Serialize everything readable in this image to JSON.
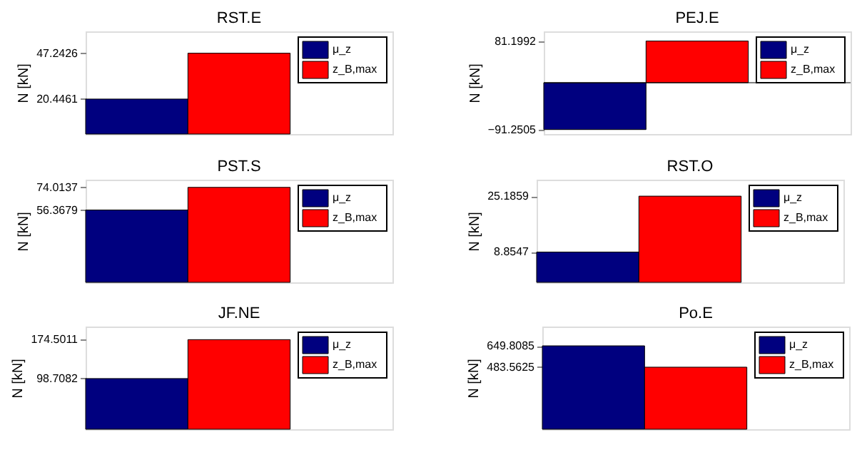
{
  "chart_data": [
    {
      "type": "bar",
      "title": "RST.E",
      "ylabel": "N [kN]",
      "categories": [
        null
      ],
      "ylim": [
        0,
        60
      ],
      "yticks": [
        20.4461,
        47.2426
      ],
      "tick_labels": "y",
      "grid": false,
      "legend": "top right",
      "series": [
        {
          "name": "μ_z",
          "color": "#00007f",
          "values": [
            20.4461
          ]
        },
        {
          "name": "z_B,max",
          "color": "#ff0000",
          "values": [
            47.2426
          ]
        }
      ]
    },
    {
      "type": "bar",
      "title": "PEJ.E",
      "ylabel": "N [kN]",
      "categories": [
        null
      ],
      "ylim": [
        -100,
        100
      ],
      "yticks": [
        -91.2505,
        81.1992
      ],
      "tick_labels": "y",
      "grid": false,
      "legend": "top right",
      "series": [
        {
          "name": "μ_z",
          "color": "#00007f",
          "values": [
            -91.2505
          ]
        },
        {
          "name": "z_B,max",
          "color": "#ff0000",
          "values": [
            81.1992
          ]
        }
      ]
    },
    {
      "type": "bar",
      "title": "PST.S",
      "ylabel": "N [kN]",
      "categories": [
        null
      ],
      "ylim": [
        0,
        80
      ],
      "yticks": [
        56.3679,
        74.0137
      ],
      "tick_labels": "y",
      "grid": false,
      "legend": "top right",
      "series": [
        {
          "name": "μ_z",
          "color": "#00007f",
          "values": [
            56.3679
          ]
        },
        {
          "name": "z_B,max",
          "color": "#ff0000",
          "values": [
            74.0137
          ]
        }
      ]
    },
    {
      "type": "bar",
      "title": "RST.O",
      "ylabel": "N [kN]",
      "categories": [
        null
      ],
      "ylim": [
        0,
        30
      ],
      "yticks": [
        8.8547,
        25.1859
      ],
      "tick_labels": "y",
      "grid": false,
      "legend": "top right",
      "series": [
        {
          "name": "μ_z",
          "color": "#00007f",
          "values": [
            8.8547
          ]
        },
        {
          "name": "z_B,max",
          "color": "#ff0000",
          "values": [
            25.1859
          ]
        }
      ]
    },
    {
      "type": "bar",
      "title": "JF.NE",
      "ylabel": "N [kN]",
      "categories": [
        null
      ],
      "ylim": [
        0,
        200
      ],
      "yticks": [
        98.7082,
        174.5011
      ],
      "tick_labels": "y",
      "grid": false,
      "legend": "top right",
      "series": [
        {
          "name": "μ_z",
          "color": "#00007f",
          "values": [
            98.7082
          ]
        },
        {
          "name": "z_B,max",
          "color": "#ff0000",
          "values": [
            174.5011
          ]
        }
      ]
    },
    {
      "type": "bar",
      "title": "Po.E",
      "ylabel": "N [kN]",
      "categories": [
        null
      ],
      "ylim": [
        0,
        800
      ],
      "yticks": [
        483.5625,
        649.8085
      ],
      "tick_labels": "y",
      "grid": false,
      "legend": "top right",
      "series": [
        {
          "name": "μ_z",
          "color": "#00007f",
          "values": [
            649.8085
          ]
        },
        {
          "name": "z_B,max",
          "color": "#ff0000",
          "values": [
            483.5625
          ]
        }
      ]
    }
  ]
}
